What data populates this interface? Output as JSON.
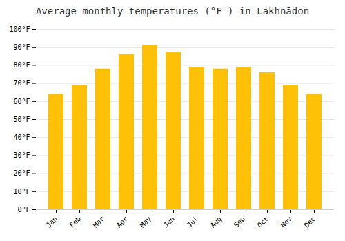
{
  "chart_data": {
    "type": "bar",
    "title": "Average monthly temperatures (°F ) in Lakhnādon",
    "categories": [
      "Jan",
      "Feb",
      "Mar",
      "Apr",
      "May",
      "Jun",
      "Jul",
      "Aug",
      "Sep",
      "Oct",
      "Nov",
      "Dec"
    ],
    "values": [
      64,
      69,
      78,
      86,
      91,
      87,
      79,
      78,
      79,
      76,
      69,
      64
    ],
    "color": "#FFC107",
    "ylim": [
      0,
      100
    ],
    "yticks": [
      {
        "value": 0,
        "label": "0°F"
      },
      {
        "value": 10,
        "label": "10°F"
      },
      {
        "value": 20,
        "label": "20°F"
      },
      {
        "value": 30,
        "label": "30°F"
      },
      {
        "value": 40,
        "label": "40°F"
      },
      {
        "value": 50,
        "label": "50°F"
      },
      {
        "value": 60,
        "label": "60°F"
      },
      {
        "value": 70,
        "label": "70°F"
      },
      {
        "value": 80,
        "label": "80°F"
      },
      {
        "value": 90,
        "label": "90°F"
      },
      {
        "value": 100,
        "label": "100°F"
      }
    ],
    "grid": true
  }
}
